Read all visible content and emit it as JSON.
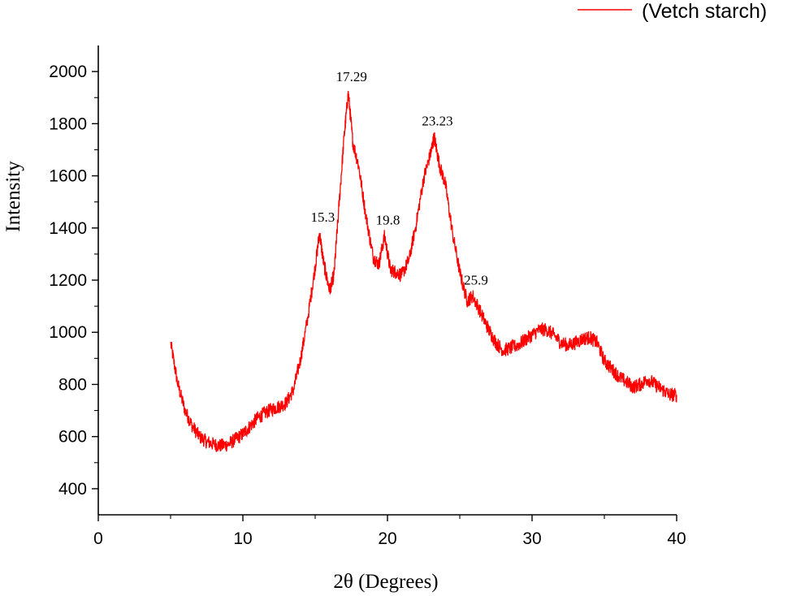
{
  "chart_data": {
    "type": "line",
    "xlabel": "2θ (Degrees)",
    "ylabel": "Intensity",
    "xlim": [
      0,
      40
    ],
    "ylim": [
      300,
      2100
    ],
    "x_ticks": [
      0,
      10,
      20,
      30,
      40
    ],
    "y_ticks": [
      400,
      600,
      800,
      1000,
      1200,
      1400,
      1600,
      1800,
      2000
    ],
    "grid": false,
    "legend_position": "top-right",
    "series": [
      {
        "name": "(Vetch starch)",
        "color": "#ff0000",
        "x": [
          5,
          5.5,
          6,
          6.5,
          7,
          7.5,
          8,
          8.5,
          9,
          9.5,
          10,
          10.5,
          11,
          11.5,
          12,
          12.5,
          13,
          13.5,
          14,
          14.5,
          15,
          15.3,
          15.6,
          16,
          16.3,
          16.6,
          17,
          17.29,
          17.6,
          18,
          18.5,
          19,
          19.4,
          19.8,
          20.2,
          20.6,
          21,
          21.5,
          22,
          22.5,
          23,
          23.23,
          23.6,
          24,
          24.5,
          25,
          25.5,
          25.9,
          26.5,
          27,
          27.5,
          28,
          28.5,
          29,
          29.5,
          30,
          30.5,
          31,
          31.5,
          32,
          32.5,
          33,
          33.5,
          34,
          34.5,
          35,
          35.5,
          36,
          36.5,
          37,
          37.5,
          38,
          38.5,
          39,
          39.5,
          40
        ],
        "y": [
          960,
          800,
          700,
          640,
          600,
          580,
          570,
          565,
          570,
          590,
          610,
          640,
          670,
          690,
          705,
          715,
          730,
          780,
          900,
          1060,
          1250,
          1380,
          1260,
          1160,
          1220,
          1450,
          1750,
          1920,
          1730,
          1640,
          1450,
          1290,
          1260,
          1370,
          1240,
          1230,
          1220,
          1280,
          1420,
          1590,
          1690,
          1750,
          1640,
          1570,
          1380,
          1230,
          1120,
          1140,
          1070,
          1010,
          960,
          930,
          940,
          950,
          970,
          990,
          1010,
          1010,
          990,
          960,
          950,
          960,
          975,
          980,
          960,
          890,
          860,
          830,
          810,
          790,
          800,
          820,
          800,
          780,
          760,
          760
        ]
      }
    ],
    "annotations": [
      {
        "text": "15.3",
        "x": 15.3,
        "y": 1380
      },
      {
        "text": "17.29",
        "x": 17.29,
        "y": 1920
      },
      {
        "text": "19.8",
        "x": 19.8,
        "y": 1370
      },
      {
        "text": "23.23",
        "x": 23.23,
        "y": 1750
      },
      {
        "text": "25.9",
        "x": 25.9,
        "y": 1140
      }
    ]
  }
}
